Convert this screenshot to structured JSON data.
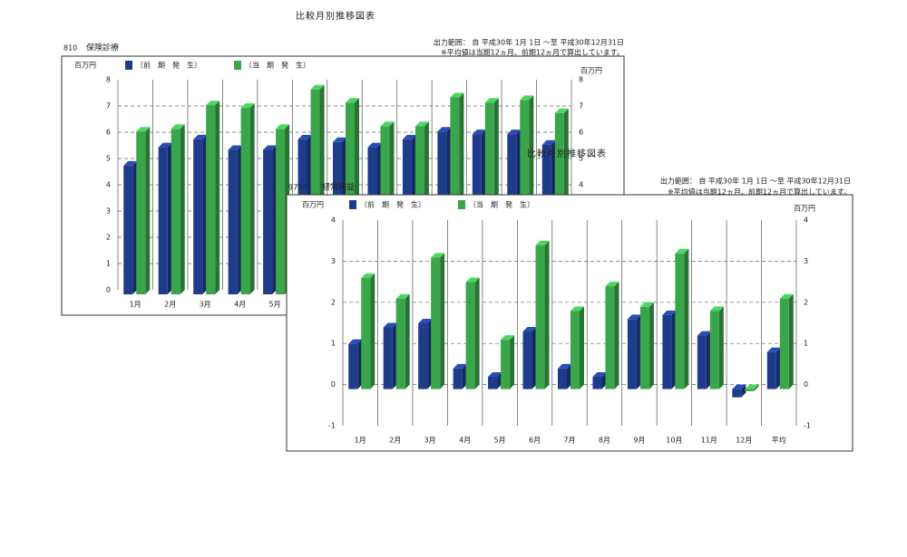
{
  "chart_data": [
    {
      "type": "bar",
      "title": "比較月別推移図表",
      "code": "810",
      "subject": "保険診療",
      "range": "出力範囲： 自 平成30年 1月 1日 ～至 平成30年12月31日",
      "note": "※平均値は当期12ヵ月、前期12ヵ月で算出しています。",
      "unit": "百万円",
      "categories": [
        "1月",
        "2月",
        "3月",
        "4月",
        "5月",
        null,
        null,
        null,
        null,
        null,
        null,
        null,
        null
      ],
      "series": [
        {
          "name": "〔前　期　発　生〕",
          "color": "#1f3c8c",
          "values": [
            4.9,
            5.6,
            5.9,
            5.5,
            5.5,
            5.9,
            5.8,
            5.6,
            5.9,
            6.2,
            6.1,
            6.1,
            5.7
          ]
        },
        {
          "name": "〔当　期　発　生〕",
          "color": "#3aa54a",
          "values": [
            6.2,
            6.3,
            7.2,
            7.1,
            6.3,
            7.8,
            7.3,
            6.4,
            6.4,
            7.5,
            7.3,
            7.4,
            6.9
          ]
        }
      ],
      "ylim": [
        0,
        8
      ],
      "yticks": [
        0,
        1,
        2,
        3,
        4,
        5,
        6,
        7,
        8
      ],
      "grid": true
    },
    {
      "type": "bar",
      "title": "比較月別推移図表",
      "code": "9700",
      "subject": "経常利益",
      "range": "出力範囲： 自 平成30年 1月 1日 ～至 平成30年12月31日",
      "note": "※平均値は当期12ヵ月、前期12ヵ月で算出しています。",
      "unit": "百万円",
      "categories": [
        "1月",
        "2月",
        "3月",
        "4月",
        "5月",
        "6月",
        "7月",
        "8月",
        "9月",
        "10月",
        "11月",
        "12月",
        "平均"
      ],
      "series": [
        {
          "name": "〔前　期　発　生〕",
          "color": "#1f3c8c",
          "values": [
            1.1,
            1.5,
            1.6,
            0.5,
            0.3,
            1.4,
            0.5,
            0.3,
            1.7,
            1.8,
            1.3,
            -0.2,
            0.9
          ]
        },
        {
          "name": "〔当　期　発　生〕",
          "color": "#3aa54a",
          "values": [
            2.7,
            2.2,
            3.2,
            2.6,
            1.2,
            3.5,
            1.9,
            2.5,
            2.0,
            3.3,
            1.9,
            -0.05,
            2.2
          ]
        }
      ],
      "ylim": [
        -1,
        4
      ],
      "yticks": [
        -1,
        0,
        1,
        2,
        3,
        4
      ],
      "grid": true
    }
  ]
}
